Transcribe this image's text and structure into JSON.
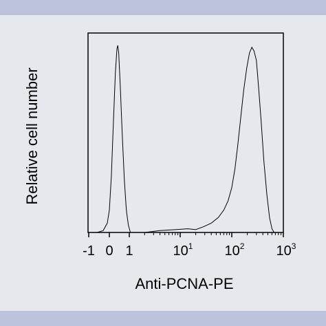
{
  "chart_data": {
    "type": "line",
    "title": "",
    "xlabel": "Anti-PCNA-PE",
    "ylabel": "Relative cell number",
    "x_scale": "biexponential",
    "x_ticks": [
      {
        "value": -1,
        "base": "-1",
        "exp": ""
      },
      {
        "value": 0,
        "base": "0",
        "exp": ""
      },
      {
        "value": 1,
        "base": "1",
        "exp": ""
      },
      {
        "value": 10,
        "base": "10",
        "exp": "1"
      },
      {
        "value": 100,
        "base": "10",
        "exp": "2"
      },
      {
        "value": 1000,
        "base": "10",
        "exp": "3"
      }
    ],
    "xlim": [
      -1.5,
      1000
    ],
    "ylim": [
      0,
      1
    ],
    "grid": false,
    "legend": "none",
    "series": [
      {
        "points": [
          [
            -1.5,
            0.0
          ],
          [
            -0.6,
            0.0
          ],
          [
            -0.3,
            0.01
          ],
          [
            -0.1,
            0.05
          ],
          [
            0.0,
            0.12
          ],
          [
            0.1,
            0.3
          ],
          [
            0.2,
            0.58
          ],
          [
            0.3,
            0.85
          ],
          [
            0.38,
            0.98
          ],
          [
            0.42,
            1.0
          ],
          [
            0.47,
            0.96
          ],
          [
            0.55,
            0.78
          ],
          [
            0.65,
            0.52
          ],
          [
            0.75,
            0.28
          ],
          [
            0.85,
            0.12
          ],
          [
            0.95,
            0.04
          ],
          [
            1.05,
            0.0
          ],
          [
            2,
            0.0
          ],
          [
            4,
            0.01
          ],
          [
            8,
            0.015
          ],
          [
            14,
            0.02
          ],
          [
            20,
            0.015
          ],
          [
            28,
            0.03
          ],
          [
            40,
            0.05
          ],
          [
            55,
            0.08
          ],
          [
            70,
            0.12
          ],
          [
            85,
            0.17
          ],
          [
            100,
            0.24
          ],
          [
            115,
            0.34
          ],
          [
            130,
            0.46
          ],
          [
            150,
            0.62
          ],
          [
            170,
            0.76
          ],
          [
            195,
            0.88
          ],
          [
            220,
            0.96
          ],
          [
            245,
            0.99
          ],
          [
            270,
            0.97
          ],
          [
            300,
            0.92
          ],
          [
            330,
            0.78
          ],
          [
            370,
            0.6
          ],
          [
            420,
            0.38
          ],
          [
            480,
            0.2
          ],
          [
            540,
            0.08
          ],
          [
            600,
            0.02
          ],
          [
            660,
            0.0
          ],
          [
            1000,
            0.0
          ]
        ]
      }
    ]
  }
}
